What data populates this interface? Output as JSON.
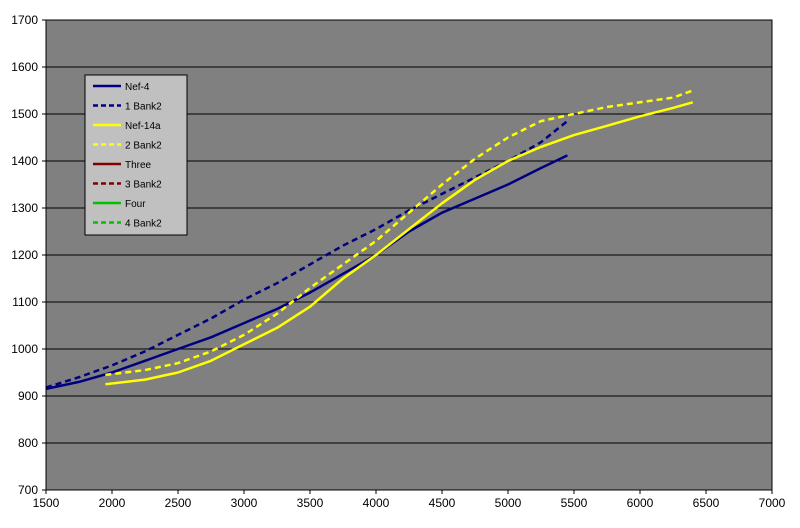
{
  "chart_data": {
    "type": "line",
    "title": "",
    "xlabel": "",
    "ylabel": "",
    "xlim": [
      1500,
      7000
    ],
    "ylim": [
      700,
      1700
    ],
    "xticks": [
      1500,
      2000,
      2500,
      3000,
      3500,
      4000,
      4500,
      5000,
      5500,
      6000,
      6500,
      7000
    ],
    "yticks": [
      700,
      800,
      900,
      1000,
      1100,
      1200,
      1300,
      1400,
      1500,
      1600,
      1700
    ],
    "grid": true,
    "legend_position": "top-left",
    "colors": {
      "plot_background": "#808080",
      "grid": "#000000",
      "legend_background": "#c0c0c0"
    },
    "series": [
      {
        "name": "Nef-4",
        "color": "#000080",
        "dash": false,
        "x": [
          1500,
          1750,
          2000,
          2250,
          2500,
          2750,
          3000,
          3250,
          3500,
          3750,
          4000,
          4250,
          4500,
          4750,
          5000,
          5250,
          5450
        ],
        "y": [
          915,
          930,
          950,
          975,
          1000,
          1025,
          1055,
          1085,
          1120,
          1160,
          1200,
          1250,
          1290,
          1320,
          1350,
          1385,
          1412
        ]
      },
      {
        "name": "1 Bank2",
        "color": "#000080",
        "dash": true,
        "x": [
          1500,
          1750,
          2000,
          2250,
          2500,
          2750,
          3000,
          3250,
          3500,
          3750,
          4000,
          4250,
          4500,
          4750,
          5000,
          5250,
          5450
        ],
        "y": [
          918,
          940,
          965,
          995,
          1030,
          1065,
          1105,
          1140,
          1180,
          1220,
          1255,
          1295,
          1330,
          1365,
          1400,
          1440,
          1485
        ]
      },
      {
        "name": "Nef-14a",
        "color": "#ffff00",
        "dash": false,
        "x": [
          1950,
          2250,
          2500,
          2750,
          3000,
          3250,
          3500,
          3750,
          4000,
          4250,
          4500,
          4750,
          5000,
          5250,
          5500,
          5750,
          6000,
          6250,
          6400
        ],
        "y": [
          925,
          935,
          950,
          975,
          1010,
          1045,
          1090,
          1150,
          1200,
          1255,
          1310,
          1360,
          1400,
          1430,
          1455,
          1475,
          1495,
          1513,
          1525
        ]
      },
      {
        "name": "2 Bank2",
        "color": "#ffff00",
        "dash": true,
        "x": [
          1950,
          2250,
          2500,
          2750,
          3000,
          3250,
          3500,
          3750,
          4000,
          4250,
          4500,
          4750,
          5000,
          5250,
          5500,
          5750,
          6000,
          6250,
          6400
        ],
        "y": [
          945,
          955,
          970,
          995,
          1030,
          1075,
          1130,
          1180,
          1230,
          1290,
          1350,
          1405,
          1450,
          1485,
          1500,
          1515,
          1525,
          1535,
          1550
        ]
      },
      {
        "name": "Three",
        "color": "#800000",
        "dash": false,
        "x": [],
        "y": []
      },
      {
        "name": "3 Bank2",
        "color": "#800000",
        "dash": true,
        "x": [],
        "y": []
      },
      {
        "name": "Four",
        "color": "#00c000",
        "dash": false,
        "x": [],
        "y": []
      },
      {
        "name": "4 Bank2",
        "color": "#00c000",
        "dash": true,
        "x": [],
        "y": []
      }
    ]
  }
}
